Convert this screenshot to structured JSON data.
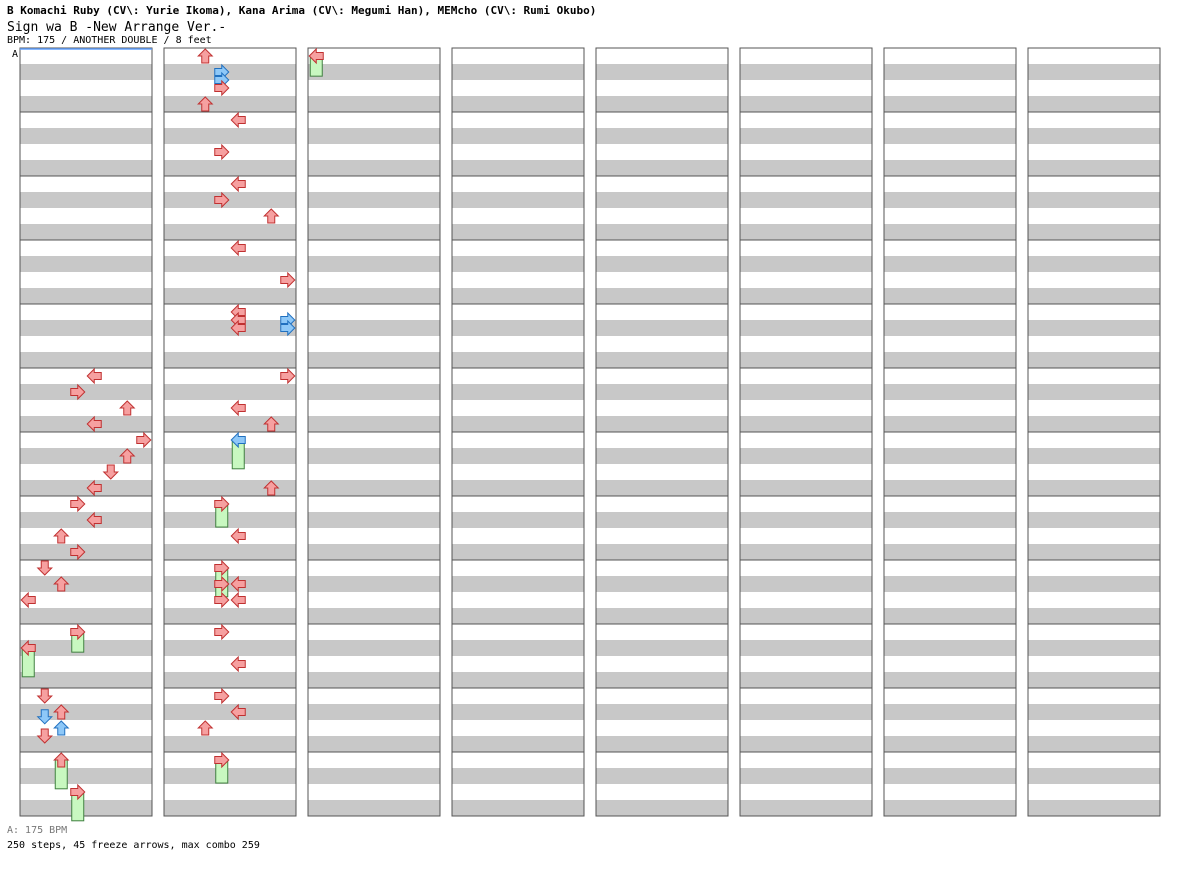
{
  "header": {
    "artist": "B Komachi Ruby (CV\\: Yurie Ikoma), Kana Arima (CV\\: Megumi Han), MEMcho (CV\\: Rumi Okubo)",
    "title": "Sign wa B -New Arrange Ver.-",
    "meta": "BPM: 175 / ANOTHER DOUBLE / 8 feet"
  },
  "bpm_marker": "A",
  "footer": {
    "bpm_legend": "A: 175 BPM",
    "stats": "250 steps, 45 freeze arrows, max combo 259"
  },
  "colors": {
    "note_red": "#f6a0a0",
    "note_red_border": "#c03030",
    "note_blue": "#8ec8f8",
    "note_blue_border": "#2070c0",
    "freeze_green": "#c8f8c0",
    "freeze_border": "#408040",
    "band_gray": "#c8c8c8",
    "bpm_line": "#60a0ff"
  },
  "chart_data": {
    "type": "step-chart",
    "bpm": 175,
    "difficulty": "ANOTHER DOUBLE",
    "feet": 8,
    "total_steps": 250,
    "freeze_arrows": 45,
    "max_combo": 259,
    "columns": 8,
    "measures_per_column": 12,
    "lanes": 8,
    "lane_directions": [
      "left",
      "down",
      "up",
      "right",
      "left",
      "down",
      "up",
      "right"
    ],
    "notes": [
      {
        "m": 5,
        "t": 0,
        "l": 4,
        "c": "red"
      },
      {
        "m": 5,
        "t": 1,
        "l": 3,
        "c": "red"
      },
      {
        "m": 5,
        "t": 2,
        "l": 6,
        "c": "red"
      },
      {
        "m": 5,
        "t": 3,
        "l": 4,
        "c": "red"
      },
      {
        "m": 6,
        "t": 0,
        "l": 7,
        "c": "red"
      },
      {
        "m": 6,
        "t": 1,
        "l": 6,
        "c": "red"
      },
      {
        "m": 6,
        "t": 2,
        "l": 5,
        "c": "red"
      },
      {
        "m": 6,
        "t": 3,
        "l": 4,
        "c": "red"
      },
      {
        "m": 7,
        "t": 0,
        "l": 3,
        "c": "red"
      },
      {
        "m": 7,
        "t": 1,
        "l": 4,
        "c": "red"
      },
      {
        "m": 7,
        "t": 2,
        "l": 2,
        "c": "red"
      },
      {
        "m": 7,
        "t": 3,
        "l": 3,
        "c": "red"
      },
      {
        "m": 8,
        "t": 0,
        "l": 1,
        "c": "red"
      },
      {
        "m": 8,
        "t": 1,
        "l": 2,
        "c": "red"
      },
      {
        "m": 8,
        "t": 2,
        "l": 0,
        "c": "red"
      },
      {
        "m": 9,
        "t": 1,
        "l": 0,
        "c": "red",
        "h": 1.0
      },
      {
        "m": 9,
        "t": 0,
        "l": 3,
        "c": "red",
        "h": 0.7
      },
      {
        "m": 10,
        "t": 0,
        "l": 1,
        "c": "red"
      },
      {
        "m": 10,
        "t": 1,
        "l": 2,
        "c": "red"
      },
      {
        "m": 10,
        "t": 1.3,
        "l": 1,
        "c": "blue"
      },
      {
        "m": 10,
        "t": 2,
        "l": 2,
        "c": "blue"
      },
      {
        "m": 10,
        "t": 2.5,
        "l": 1,
        "c": "red"
      },
      {
        "m": 11,
        "t": 0,
        "l": 2,
        "c": "red",
        "h": 1.0
      },
      {
        "m": 11,
        "t": 2,
        "l": 3,
        "c": "red",
        "h": 1.0
      },
      {
        "m": 12,
        "t": 0,
        "l": 2,
        "c": "red"
      },
      {
        "m": 12,
        "t": 1,
        "l": 3,
        "c": "blue"
      },
      {
        "m": 12,
        "t": 1.5,
        "l": 3,
        "c": "blue"
      },
      {
        "m": 12,
        "t": 2,
        "l": 3,
        "c": "red"
      },
      {
        "m": 12,
        "t": 3,
        "l": 2,
        "c": "red"
      },
      {
        "m": 13,
        "t": 0,
        "l": 4,
        "c": "red"
      },
      {
        "m": 13,
        "t": 2,
        "l": 3,
        "c": "red"
      },
      {
        "m": 14,
        "t": 0,
        "l": 4,
        "c": "red"
      },
      {
        "m": 14,
        "t": 1,
        "l": 3,
        "c": "red"
      },
      {
        "m": 14,
        "t": 2,
        "l": 6,
        "c": "red"
      },
      {
        "m": 15,
        "t": 0,
        "l": 4,
        "c": "red"
      },
      {
        "m": 15,
        "t": 2,
        "l": 7,
        "c": "red"
      },
      {
        "m": 16,
        "t": 0,
        "l": 4,
        "c": "red"
      },
      {
        "m": 16,
        "t": 0.5,
        "l": 4,
        "c": "red"
      },
      {
        "m": 16,
        "t": 1,
        "l": 4,
        "c": "red"
      },
      {
        "m": 16,
        "t": 0.5,
        "l": 7,
        "c": "blue"
      },
      {
        "m": 16,
        "t": 1,
        "l": 7,
        "c": "blue"
      },
      {
        "m": 17,
        "t": 0,
        "l": 7,
        "c": "red"
      },
      {
        "m": 17,
        "t": 2,
        "l": 4,
        "c": "red"
      },
      {
        "m": 17,
        "t": 3,
        "l": 6,
        "c": "red"
      },
      {
        "m": 18,
        "t": 0,
        "l": 4,
        "c": "blue",
        "h": 1.0
      },
      {
        "m": 18,
        "t": 3,
        "l": 6,
        "c": "red"
      },
      {
        "m": 19,
        "t": 0,
        "l": 3,
        "c": "red",
        "h": 0.8
      },
      {
        "m": 19,
        "t": 2,
        "l": 4,
        "c": "red"
      },
      {
        "m": 20,
        "t": 0,
        "l": 3,
        "c": "red",
        "h": 1.0
      },
      {
        "m": 20,
        "t": 1,
        "l": 3,
        "c": "red"
      },
      {
        "m": 20,
        "t": 1,
        "l": 4,
        "c": "red"
      },
      {
        "m": 20,
        "t": 2,
        "l": 3,
        "c": "red"
      },
      {
        "m": 20,
        "t": 2,
        "l": 4,
        "c": "red"
      },
      {
        "m": 21,
        "t": 0,
        "l": 3,
        "c": "red"
      },
      {
        "m": 21,
        "t": 2,
        "l": 4,
        "c": "red"
      },
      {
        "m": 22,
        "t": 0,
        "l": 3,
        "c": "red"
      },
      {
        "m": 22,
        "t": 1,
        "l": 4,
        "c": "red"
      },
      {
        "m": 22,
        "t": 2,
        "l": 2,
        "c": "red"
      },
      {
        "m": 23,
        "t": 0,
        "l": 3,
        "c": "red",
        "h": 0.8
      },
      {
        "m": 24,
        "t": 0,
        "l": 0,
        "c": "red",
        "h": 0.7
      }
    ]
  }
}
